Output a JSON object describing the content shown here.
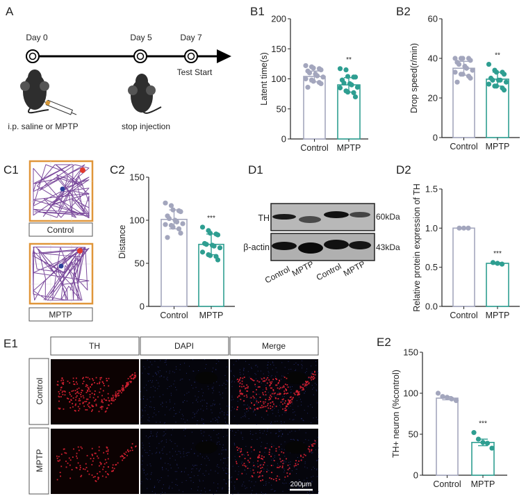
{
  "panel_labels": {
    "A": "A",
    "B1": "B1",
    "B2": "B2",
    "C1": "C1",
    "C2": "C2",
    "D1": "D1",
    "D2": "D2",
    "E1": "E1",
    "E2": "E2"
  },
  "timeline": {
    "days": [
      "Day 0",
      "Day 5",
      "Day 7"
    ],
    "test_start": "Test Start",
    "step1": "i.p. saline or MPTP",
    "step2": "stop injection"
  },
  "open_field": {
    "labels": [
      "Control",
      "MPTP"
    ],
    "track_color": "#7b4a9c",
    "frame_color": "#e0963a",
    "start_color": "#2b3f9a",
    "end_color": "#e23b2e"
  },
  "western_blot": {
    "proteins": [
      "TH",
      "β-actin"
    ],
    "sizes": [
      "60kDa",
      "43kDa"
    ],
    "lanes": [
      "Control",
      "MPTP",
      "Control",
      "MPTP"
    ]
  },
  "microscopy": {
    "columns": [
      "TH",
      "DAPI",
      "Merge"
    ],
    "rows": [
      "Control",
      "MPTP"
    ],
    "scale_bar": "200μm"
  },
  "colors": {
    "control": "#a3a6bd",
    "mptp": "#2e9e91"
  },
  "chart_data": [
    {
      "id": "B1",
      "type": "bar",
      "categories": [
        "Control",
        "MPTP"
      ],
      "ylabel": "Latent time(s)",
      "ylim": [
        0,
        200
      ],
      "yticks": [
        0,
        50,
        100,
        150,
        200
      ],
      "means": [
        104,
        90
      ],
      "errors": [
        9,
        12
      ],
      "significance": [
        "",
        "**"
      ],
      "points": [
        [
          122,
          120,
          118,
          117,
          115,
          113,
          110,
          108,
          105,
          103,
          100,
          98,
          96,
          94,
          92,
          86
        ],
        [
          117,
          115,
          104,
          103,
          103,
          98,
          93,
          92,
          90,
          86,
          85,
          80,
          78,
          77,
          70
        ]
      ]
    },
    {
      "id": "B2",
      "type": "bar",
      "categories": [
        "Control",
        "MPTP"
      ],
      "ylabel": "Drop speed(r/min)",
      "ylim": [
        0,
        60
      ],
      "yticks": [
        0,
        20,
        40,
        60
      ],
      "means": [
        35,
        29.5
      ],
      "errors": [
        3.5,
        3.5
      ],
      "significance": [
        "",
        "**"
      ],
      "points": [
        [
          40,
          40,
          40,
          40,
          39,
          38,
          37,
          36,
          35,
          34,
          33,
          32,
          32,
          31,
          30,
          28
        ],
        [
          37,
          34,
          33,
          33,
          32,
          30,
          29,
          29,
          29,
          28,
          27,
          26,
          26,
          25,
          24
        ]
      ]
    },
    {
      "id": "C2",
      "type": "bar",
      "categories": [
        "Control",
        "MPTP"
      ],
      "ylabel": "Distance",
      "ylim": [
        0,
        150
      ],
      "yticks": [
        0,
        50,
        100,
        150
      ],
      "means": [
        101,
        72
      ],
      "errors": [
        11,
        12
      ],
      "significance": [
        "",
        "***"
      ],
      "points": [
        [
          120,
          117,
          112,
          111,
          110,
          105,
          102,
          100,
          98,
          96,
          95,
          94,
          92,
          90,
          85,
          80
        ],
        [
          92,
          88,
          85,
          84,
          83,
          73,
          72,
          71,
          70,
          68,
          63,
          60,
          59,
          58,
          54
        ]
      ]
    },
    {
      "id": "D2",
      "type": "bar",
      "categories": [
        "Control",
        "MPTP"
      ],
      "ylabel": "Relative protein expression of TH",
      "ylim": [
        0,
        1.5
      ],
      "yticks": [
        "0.0",
        "0.5",
        "1.0",
        "1.5"
      ],
      "means": [
        1.0,
        0.55
      ],
      "errors": [
        0,
        0.01
      ],
      "significance": [
        "",
        "***"
      ],
      "points": [
        [
          1,
          1,
          1
        ],
        [
          0.56,
          0.55,
          0.54
        ]
      ]
    },
    {
      "id": "E2",
      "type": "bar",
      "categories": [
        "Control",
        "MPTP"
      ],
      "ylabel": "TH+ neuron  (%control)",
      "ylim": [
        0,
        150
      ],
      "yticks": [
        0,
        50,
        100,
        150
      ],
      "means": [
        94,
        40
      ],
      "errors": [
        2,
        4
      ],
      "significance": [
        "",
        "***"
      ],
      "points": [
        [
          100,
          96,
          95,
          93,
          91
        ],
        [
          52,
          44,
          40,
          39,
          33
        ]
      ]
    }
  ]
}
